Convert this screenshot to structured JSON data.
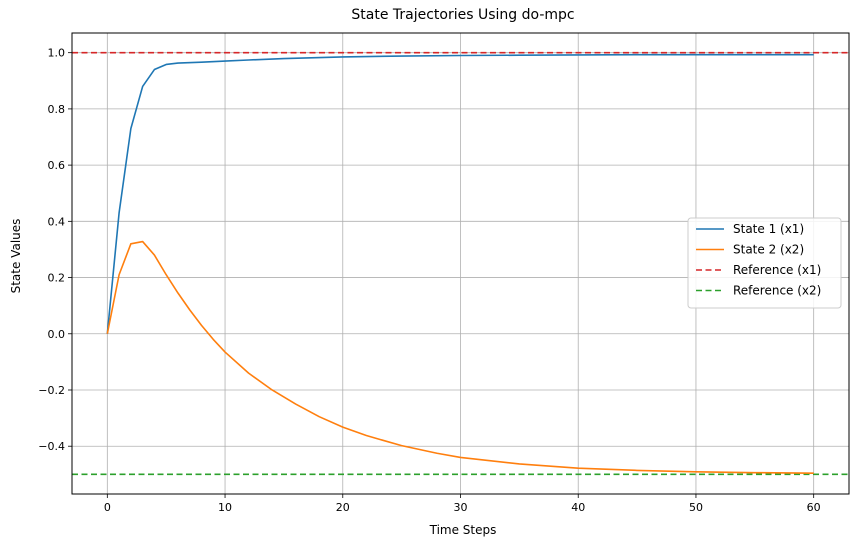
{
  "chart_data": {
    "type": "line",
    "title": "State Trajectories Using do-mpc",
    "xlabel": "Time Steps",
    "ylabel": "State Values",
    "xlim": [
      -3,
      63
    ],
    "ylim": [
      -0.57,
      1.07
    ],
    "xticks": [
      0,
      10,
      20,
      30,
      40,
      50,
      60
    ],
    "yticks": [
      -0.4,
      -0.2,
      0.0,
      0.2,
      0.4,
      0.6,
      0.8,
      1.0
    ],
    "xtick_labels": [
      "0",
      "10",
      "20",
      "30",
      "40",
      "50",
      "60"
    ],
    "ytick_labels": [
      "−0.4",
      "−0.2",
      "0.0",
      "0.2",
      "0.4",
      "0.6",
      "0.8",
      "1.0"
    ],
    "grid": true,
    "legend_position": "center-right",
    "series": [
      {
        "name": "State 1 (x1)",
        "color": "#1f77b4",
        "style": "solid",
        "x": [
          0,
          1,
          2,
          3,
          4,
          5,
          6,
          8,
          10,
          12,
          15,
          20,
          25,
          30,
          35,
          40,
          45,
          50,
          55,
          60
        ],
        "y": [
          0.0,
          0.43,
          0.73,
          0.88,
          0.94,
          0.958,
          0.963,
          0.966,
          0.97,
          0.974,
          0.979,
          0.985,
          0.988,
          0.99,
          0.991,
          0.992,
          0.993,
          0.993,
          0.993,
          0.993
        ]
      },
      {
        "name": "State 2 (x2)",
        "color": "#ff7f0e",
        "style": "solid",
        "x": [
          0,
          1,
          2,
          3,
          4,
          5,
          6,
          7,
          8,
          9,
          10,
          12,
          14,
          16,
          18,
          20,
          22,
          25,
          28,
          30,
          35,
          40,
          45,
          50,
          55,
          60
        ],
        "y": [
          0.0,
          0.21,
          0.32,
          0.328,
          0.28,
          0.21,
          0.145,
          0.085,
          0.03,
          -0.02,
          -0.065,
          -0.14,
          -0.2,
          -0.25,
          -0.295,
          -0.332,
          -0.362,
          -0.398,
          -0.425,
          -0.44,
          -0.463,
          -0.478,
          -0.486,
          -0.491,
          -0.494,
          -0.496
        ]
      },
      {
        "name": "Reference (x1)",
        "color": "#d62728",
        "style": "dashed",
        "x": [
          -3,
          63
        ],
        "y": [
          1.0,
          1.0
        ]
      },
      {
        "name": "Reference (x2)",
        "color": "#2ca02c",
        "style": "dashed",
        "x": [
          -3,
          63
        ],
        "y": [
          -0.5,
          -0.5
        ]
      }
    ]
  }
}
